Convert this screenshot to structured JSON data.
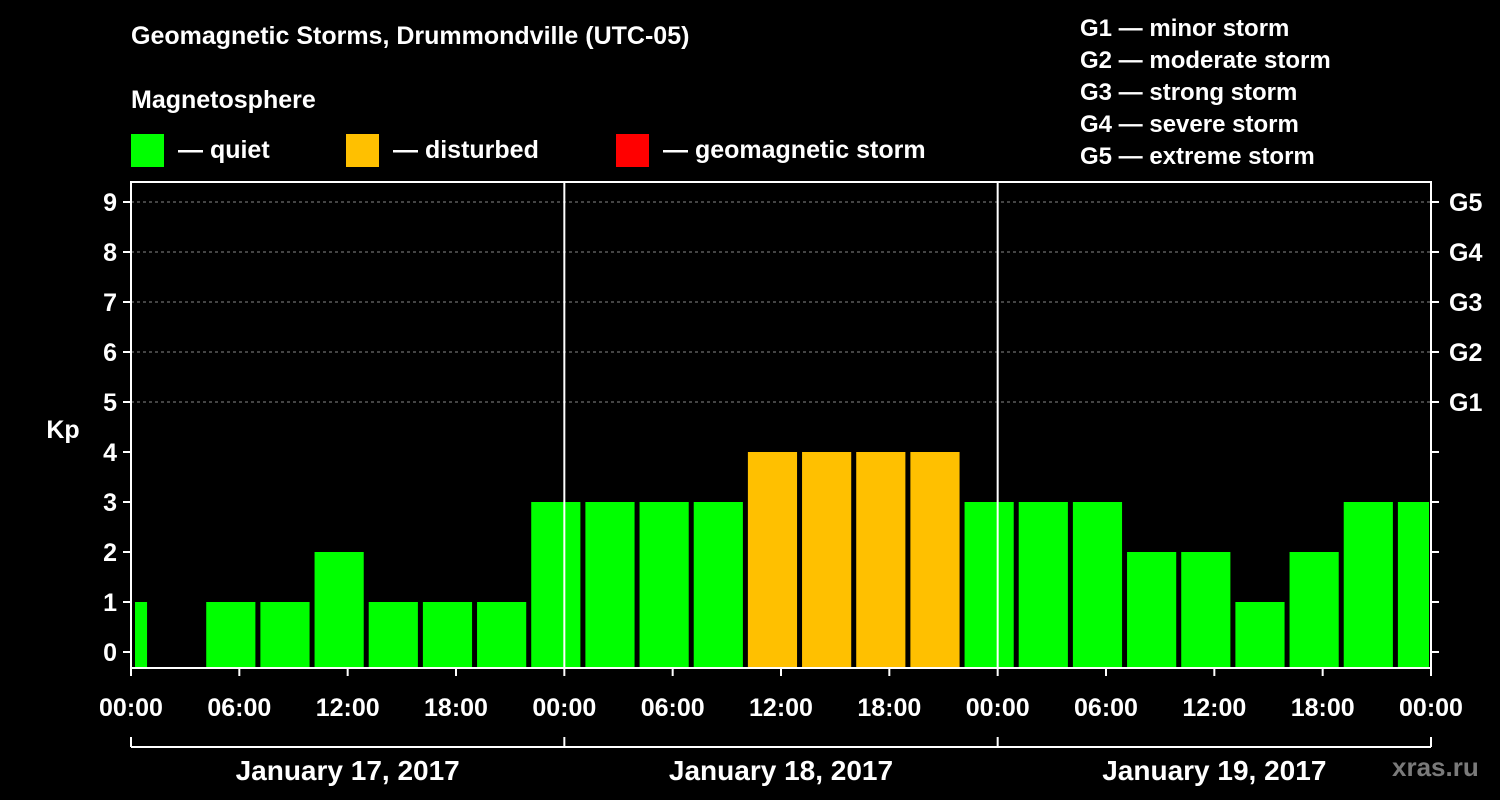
{
  "title": "Geomagnetic Storms, Drummondville (UTC-05)",
  "magnetosphere_heading": "Magnetosphere",
  "legend": [
    {
      "label": "— quiet",
      "color": "#00ff00"
    },
    {
      "label": "— disturbed",
      "color": "#ffc000"
    },
    {
      "label": "— geomagnetic storm",
      "color": "#ff0000"
    }
  ],
  "g_scale": [
    "G1 — minor storm",
    "G2 — moderate storm",
    "G3 — strong storm",
    "G4 — severe storm",
    "G5 — extreme storm"
  ],
  "watermark": "xras.ru",
  "chart_data": {
    "type": "bar",
    "ylabel": "Kp",
    "ylim": [
      0,
      9
    ],
    "y_ticks": [
      "0",
      "1",
      "2",
      "3",
      "4",
      "5",
      "6",
      "7",
      "8",
      "9"
    ],
    "right_ticks": [
      {
        "kp": 5,
        "label": "G1"
      },
      {
        "kp": 6,
        "label": "G2"
      },
      {
        "kp": 7,
        "label": "G3"
      },
      {
        "kp": 8,
        "label": "G4"
      },
      {
        "kp": 9,
        "label": "G5"
      }
    ],
    "x_tick_labels": [
      "00:00",
      "06:00",
      "12:00",
      "18:00",
      "00:00",
      "06:00",
      "12:00",
      "18:00",
      "00:00",
      "06:00",
      "12:00",
      "18:00",
      "00:00"
    ],
    "days": [
      "January 17, 2017",
      "January 18, 2017",
      "January 19, 2017"
    ],
    "grid": "dashed horizontal at Kp 5-9",
    "bars": [
      {
        "kp": 1,
        "status": "quiet"
      },
      {
        "kp": 0,
        "status": "quiet"
      },
      {
        "kp": 1,
        "status": "quiet"
      },
      {
        "kp": 1,
        "status": "quiet"
      },
      {
        "kp": 2,
        "status": "quiet"
      },
      {
        "kp": 1,
        "status": "quiet"
      },
      {
        "kp": 1,
        "status": "quiet"
      },
      {
        "kp": 1,
        "status": "quiet"
      },
      {
        "kp": 3,
        "status": "quiet"
      },
      {
        "kp": 3,
        "status": "quiet"
      },
      {
        "kp": 3,
        "status": "quiet"
      },
      {
        "kp": 3,
        "status": "quiet"
      },
      {
        "kp": 4,
        "status": "disturbed"
      },
      {
        "kp": 4,
        "status": "disturbed"
      },
      {
        "kp": 4,
        "status": "disturbed"
      },
      {
        "kp": 4,
        "status": "disturbed"
      },
      {
        "kp": 3,
        "status": "quiet"
      },
      {
        "kp": 3,
        "status": "quiet"
      },
      {
        "kp": 3,
        "status": "quiet"
      },
      {
        "kp": 2,
        "status": "quiet"
      },
      {
        "kp": 2,
        "status": "quiet"
      },
      {
        "kp": 1,
        "status": "quiet"
      },
      {
        "kp": 2,
        "status": "quiet"
      },
      {
        "kp": 3,
        "status": "quiet"
      },
      {
        "kp": 3,
        "status": "quiet"
      }
    ]
  }
}
